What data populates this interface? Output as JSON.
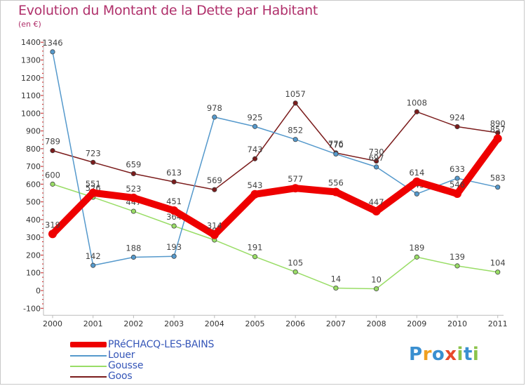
{
  "header": {
    "title": "Evolution du Montant de la Dette par Habitant",
    "subtitle": "(en €)"
  },
  "logo": {
    "text": "Proxiti"
  },
  "chart_data": {
    "type": "line",
    "title": "Evolution du Montant de la Dette par Habitant",
    "subtitle": "(en €)",
    "x": [
      "2000",
      "2001",
      "2002",
      "2003",
      "2004",
      "2005",
      "2006",
      "2007",
      "2008",
      "2009",
      "2010",
      "2011"
    ],
    "ylim": [
      -100,
      1400
    ],
    "yticks": [
      -100,
      0,
      100,
      200,
      300,
      400,
      500,
      600,
      700,
      800,
      900,
      1000,
      1100,
      1200,
      1300,
      1400
    ],
    "grid": false,
    "legend_position": "bottom-left",
    "series": [
      {
        "name": "Goos",
        "color": "#7b1c1c",
        "values": [
          789,
          723,
          659,
          613,
          569,
          743,
          1057,
          776,
          730,
          1008,
          924,
          890
        ],
        "labels": [
          "789",
          "723",
          "659",
          "613",
          "569",
          "743",
          "1057",
          "776",
          "730",
          "1008",
          "924",
          "890"
        ]
      },
      {
        "name": "Gousse",
        "color": "#99dd66",
        "values": [
          600,
          526,
          447,
          364,
          285,
          191,
          105,
          14,
          10,
          189,
          139,
          104
        ],
        "labels": [
          "600",
          "526",
          "447",
          "364",
          "285",
          "191",
          "105",
          "14",
          "10",
          "189",
          "139",
          "104"
        ]
      },
      {
        "name": "Louer",
        "color": "#5599cc",
        "values": [
          1346,
          142,
          188,
          193,
          978,
          925,
          852,
          770,
          697,
          545,
          633,
          583
        ],
        "labels": [
          "1346",
          "142",
          "188",
          "193",
          "978",
          "925",
          "852",
          "770",
          "697",
          "545",
          "633",
          "583"
        ]
      },
      {
        "name": "PRéCHACQ-LES-BAINS",
        "color": "#ee0000",
        "values": [
          319,
          551,
          523,
          451,
          314,
          543,
          577,
          556,
          447,
          614,
          546,
          857
        ],
        "labels": [
          "319",
          "551",
          "523",
          "451",
          "314",
          "543",
          "577",
          "556",
          "447",
          "614",
          "546",
          "857"
        ]
      }
    ]
  },
  "legend": {
    "items": [
      {
        "label": "PRéCHACQ-LES-BAINS",
        "color": "#ee0000"
      },
      {
        "label": "Louer",
        "color": "#5599cc"
      },
      {
        "label": "Gousse",
        "color": "#99dd66"
      },
      {
        "label": "Goos",
        "color": "#7b1c1c"
      }
    ]
  }
}
